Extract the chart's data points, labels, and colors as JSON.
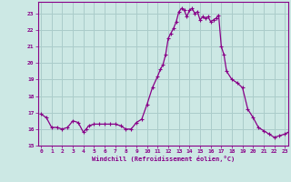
{
  "title": "",
  "xlabel": "Windchill (Refroidissement éolien,°C)",
  "ylabel": "",
  "bg_color": "#cce8e4",
  "grid_color": "#aaccca",
  "line_color": "#880088",
  "marker_color": "#880088",
  "xlim": [
    -0.3,
    23.3
  ],
  "ylim": [
    15,
    23.7
  ],
  "yticks": [
    15,
    16,
    17,
    18,
    19,
    20,
    21,
    22,
    23
  ],
  "xticks": [
    0,
    1,
    2,
    3,
    4,
    5,
    6,
    7,
    8,
    9,
    10,
    11,
    12,
    13,
    14,
    15,
    16,
    17,
    18,
    19,
    20,
    21,
    22,
    23
  ],
  "hours": [
    0,
    0.5,
    1,
    1.5,
    2,
    2.5,
    3,
    3.5,
    4,
    4.25,
    4.5,
    5,
    5.5,
    6,
    6.5,
    7,
    7.5,
    8,
    8.5,
    9,
    9.5,
    10,
    10.5,
    11,
    11.25,
    11.5,
    11.75,
    12,
    12.25,
    12.5,
    12.75,
    13,
    13.25,
    13.5,
    13.75,
    14,
    14.25,
    14.5,
    14.75,
    15,
    15.25,
    15.5,
    15.75,
    16,
    16.25,
    16.5,
    16.75,
    17,
    17.25,
    17.5,
    18,
    18.5,
    19,
    19.5,
    20,
    20.5,
    21,
    21.5,
    22,
    22.5,
    23,
    23.3
  ],
  "values": [
    16.9,
    16.7,
    16.1,
    16.1,
    16.0,
    16.1,
    16.5,
    16.4,
    15.8,
    16.0,
    16.2,
    16.3,
    16.3,
    16.3,
    16.3,
    16.3,
    16.2,
    16.0,
    16.0,
    16.4,
    16.6,
    17.5,
    18.5,
    19.2,
    19.6,
    19.9,
    20.5,
    21.5,
    21.8,
    22.1,
    22.5,
    23.1,
    23.3,
    23.2,
    22.8,
    23.2,
    23.3,
    23.0,
    23.1,
    22.6,
    22.8,
    22.7,
    22.8,
    22.5,
    22.6,
    22.7,
    22.9,
    21.0,
    20.5,
    19.5,
    19.0,
    18.8,
    18.5,
    17.2,
    16.7,
    16.1,
    15.9,
    15.7,
    15.5,
    15.6,
    15.7,
    15.8
  ]
}
